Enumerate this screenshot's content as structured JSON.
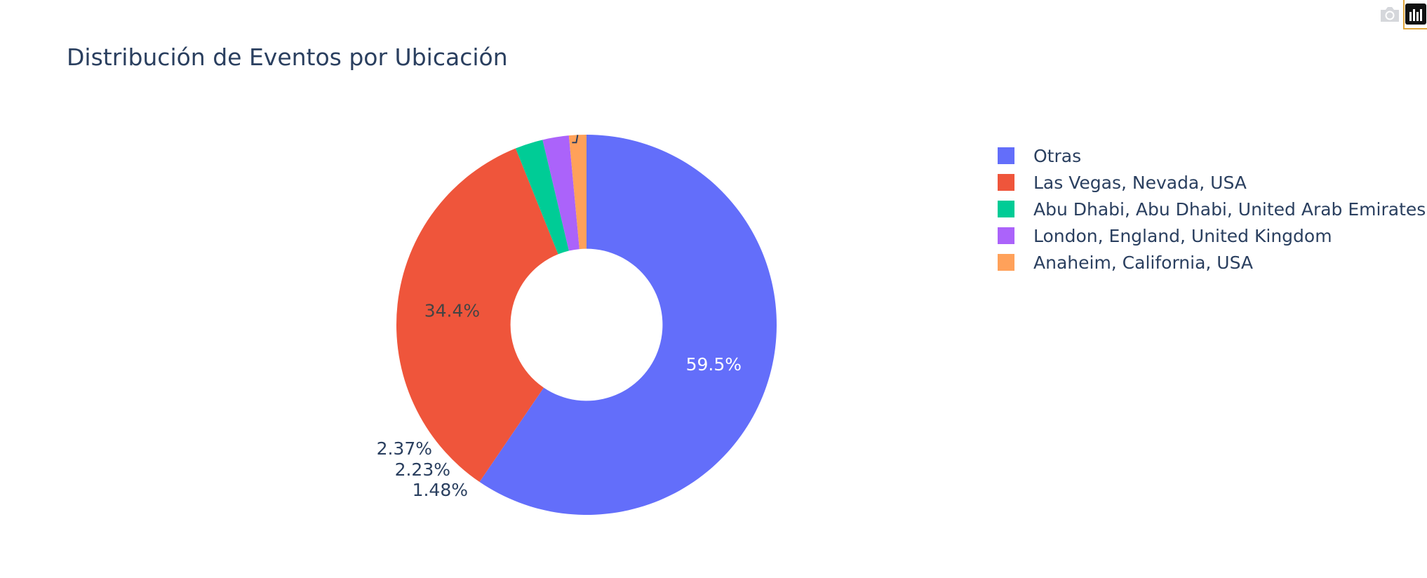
{
  "modebar": {
    "download_icon": "camera-icon",
    "logo_icon": "plotly-logo-icon"
  },
  "chart_data": {
    "type": "pie",
    "hole": 0.4,
    "title": "Distribución de Eventos por Ubicación",
    "labels": [
      "Otras",
      "Las Vegas, Nevada, USA",
      "Abu Dhabi, Abu Dhabi, United Arab Emirates",
      "London, England, United Kingdom",
      "Anaheim, California, USA"
    ],
    "values": [
      59.5,
      34.4,
      2.37,
      2.23,
      1.48
    ],
    "text_labels": [
      "59.5%",
      "34.4%",
      "2.37%",
      "2.23%",
      "1.48%"
    ],
    "colors": [
      "#636efa",
      "#ef553b",
      "#00cc96",
      "#ab63fa",
      "#ffa15a"
    ],
    "legend_position": "right",
    "direction": "clockwise",
    "start": "top"
  }
}
